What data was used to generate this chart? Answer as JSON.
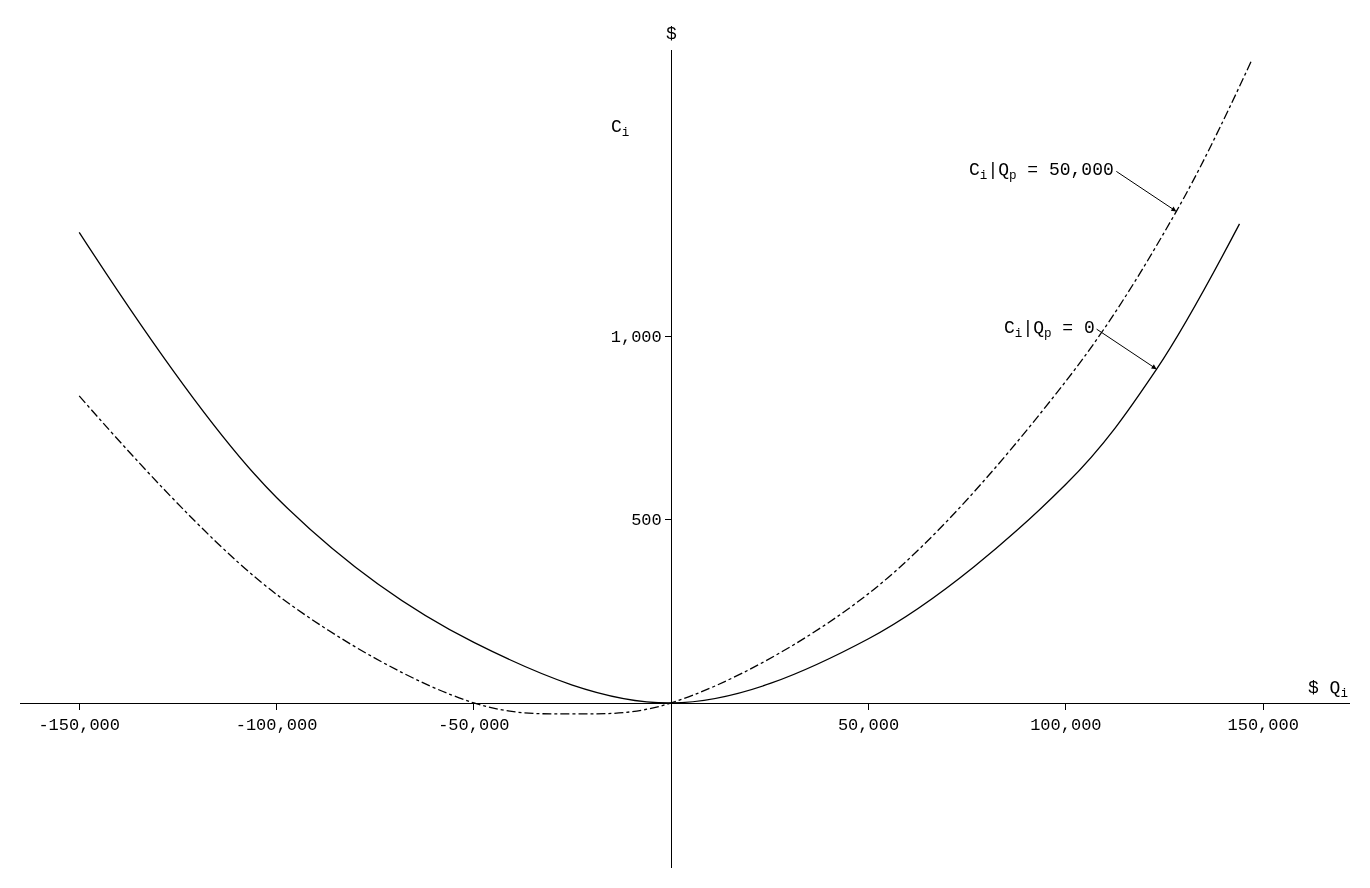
{
  "chart_data": {
    "type": "line",
    "xlabel": "$ Q$_{i}$",
    "ylabel": "$",
    "annotations": [
      "C$_{i}$",
      {
        "text": "C$_{i}$|Q$_{p}$ = 50,000",
        "x": 128000,
        "y": 1340
      },
      {
        "text": "C$_{i}$|Q$_{p}$ = 0",
        "x": 123000,
        "y": 910
      }
    ],
    "series": [
      {
        "color": "#000000",
        "line_style": "solid",
        "x": [
          -150000,
          -100000,
          -50000,
          0,
          50000,
          100000,
          123000,
          144000
        ],
        "values": [
          1283,
          560,
          165,
          0,
          175,
          596,
          910,
          1306
        ]
      },
      {
        "color": "#000000",
        "line_style": "dashed",
        "x": [
          -150000,
          -100000,
          -50000,
          -25000,
          0,
          50000,
          100000,
          128000,
          147000
        ],
        "values": [
          837,
          296,
          0,
          -30,
          0,
          298,
          877,
          1340,
          1750
        ]
      }
    ],
    "xlim": [
      -165000,
      172000
    ],
    "ylim": [
      -450,
      1780
    ],
    "xticks": [
      {
        "value": -150000,
        "label": "-150,000"
      },
      {
        "value": -100000,
        "label": "-100,000"
      },
      {
        "value": -50000,
        "label": "-50,000"
      },
      {
        "value": 50000,
        "label": "50,000"
      },
      {
        "value": 100000,
        "label": "100,000"
      },
      {
        "value": 150000,
        "label": "150,000"
      }
    ],
    "yticks": [
      500,
      {
        "value": 1000,
        "label": "1,000"
      }
    ],
    "marker": "none"
  }
}
